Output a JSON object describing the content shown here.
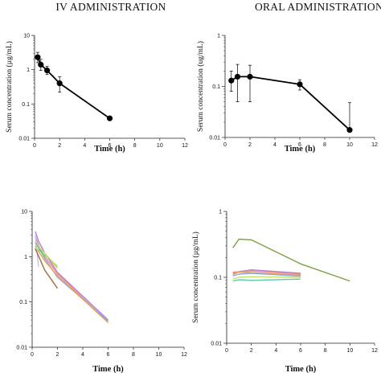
{
  "chart_data": [
    {
      "type": "line",
      "title": "IV ADMINISTRATION",
      "xlabel": "Time (h)",
      "ylabel": "Serum concentration (µg/mL)",
      "xlim": [
        0,
        12
      ],
      "ylim": [
        0.01,
        10
      ],
      "yscale": "log",
      "grid": false,
      "x_ticks": [
        "0",
        "2",
        "4",
        "6",
        "8",
        "10",
        "12"
      ],
      "y_ticks": [
        "10",
        "1",
        "0.1",
        "0.01"
      ],
      "series": [
        {
          "color": "#000000",
          "markers": true,
          "x": [
            0.25,
            0.5,
            1,
            2,
            6
          ],
          "y": [
            2.3,
            1.4,
            0.95,
            0.4,
            0.038
          ],
          "err_low": [
            1.6,
            0.95,
            0.72,
            0.22,
            0.038
          ],
          "err_high": [
            3.2,
            2.0,
            1.25,
            0.62,
            0.038
          ]
        }
      ]
    },
    {
      "type": "line",
      "title": "ORAL ADMINISTRATION",
      "xlabel": "Time (h)",
      "ylabel": "Serum concentration (ug/mL)",
      "xlim": [
        0,
        12
      ],
      "ylim": [
        0.01,
        1
      ],
      "yscale": "log",
      "grid": false,
      "x_ticks": [
        "0",
        "2",
        "4",
        "6",
        "8",
        "10",
        "12"
      ],
      "y_ticks": [
        "1",
        "0.1",
        "0.01"
      ],
      "series": [
        {
          "color": "#000000",
          "markers": true,
          "x": [
            0.5,
            1,
            2,
            6,
            10
          ],
          "y": [
            0.13,
            0.155,
            0.155,
            0.11,
            0.014
          ],
          "err_low": [
            0.08,
            0.05,
            0.05,
            0.085,
            0.014
          ],
          "err_high": [
            0.2,
            0.27,
            0.26,
            0.135,
            0.048
          ]
        }
      ]
    },
    {
      "type": "line",
      "title": "",
      "xlabel": "Time (h)",
      "ylabel": "",
      "xlim": [
        0,
        12
      ],
      "ylim": [
        0.01,
        10
      ],
      "yscale": "log",
      "grid": false,
      "x_ticks": [
        "0",
        "2",
        "4",
        "6",
        "8",
        "10",
        "12"
      ],
      "y_ticks": [
        "10",
        "1",
        "0.1",
        "0.01"
      ],
      "series": [
        {
          "color": "#b07fd6",
          "x": [
            0.25,
            0.5,
            1,
            2,
            6
          ],
          "y": [
            3.6,
            2.2,
            1.2,
            0.45,
            0.04
          ]
        },
        {
          "color": "#ef8f8f",
          "x": [
            0.25,
            0.5,
            1,
            2,
            6
          ],
          "y": [
            2.8,
            1.8,
            1.0,
            0.42,
            0.036
          ]
        },
        {
          "color": "#8fa8e8",
          "x": [
            0.25,
            0.5,
            1,
            2,
            6
          ],
          "y": [
            2.2,
            1.6,
            0.9,
            0.35,
            0.038
          ]
        },
        {
          "color": "#e8a050",
          "x": [
            0.25,
            0.5,
            1,
            2,
            6
          ],
          "y": [
            1.7,
            1.3,
            0.8,
            0.38,
            0.035
          ]
        },
        {
          "color": "#c0e070",
          "x": [
            0.25,
            0.5,
            1,
            2
          ],
          "y": [
            2.0,
            1.7,
            1.2,
            0.55
          ]
        },
        {
          "color": "#b0d050",
          "x": [
            0.25,
            0.5,
            1,
            2
          ],
          "y": [
            1.5,
            1.4,
            1.1,
            0.6
          ]
        },
        {
          "color": "#d8b8f0",
          "x": [
            0.25,
            0.5
          ],
          "y": [
            3.0,
            0.6
          ]
        },
        {
          "color": "#5cc8a0",
          "x": [
            0.25,
            1
          ],
          "y": [
            2.0,
            0.95
          ]
        },
        {
          "color": "#9a7040",
          "x": [
            0.25,
            1,
            2
          ],
          "y": [
            1.5,
            0.5,
            0.2
          ]
        }
      ]
    },
    {
      "type": "line",
      "title": "",
      "xlabel": "Time (h)",
      "ylabel": "Serum concentration (µg/mL)",
      "xlim": [
        0,
        12
      ],
      "ylim": [
        0.01,
        1
      ],
      "yscale": "log",
      "grid": false,
      "x_ticks": [
        "0",
        "2",
        "4",
        "6",
        "8",
        "10",
        "12"
      ],
      "y_ticks": [
        "1",
        "0.1",
        "0.01"
      ],
      "series": [
        {
          "color": "#7aa040",
          "x": [
            0.5,
            1,
            2,
            6,
            10
          ],
          "y": [
            0.28,
            0.38,
            0.37,
            0.16,
            0.088
          ]
        },
        {
          "color": "#b07fd6",
          "x": [
            0.5,
            1,
            2,
            6
          ],
          "y": [
            0.115,
            0.122,
            0.13,
            0.115
          ]
        },
        {
          "color": "#ef8f8f",
          "x": [
            0.5,
            1,
            2,
            6
          ],
          "y": [
            0.12,
            0.12,
            0.125,
            0.112
          ]
        },
        {
          "color": "#e8a050",
          "x": [
            0.5,
            1,
            2,
            6
          ],
          "y": [
            0.11,
            0.12,
            0.118,
            0.108
          ]
        },
        {
          "color": "#8fa8e8",
          "x": [
            0.5,
            1,
            2,
            6
          ],
          "y": [
            0.105,
            0.112,
            0.115,
            0.104
          ]
        },
        {
          "color": "#c0e070",
          "x": [
            0.5,
            1,
            2,
            6
          ],
          "y": [
            0.095,
            0.1,
            0.102,
            0.1
          ]
        },
        {
          "color": "#5cc8a0",
          "x": [
            0.5,
            1,
            2,
            6
          ],
          "y": [
            0.088,
            0.092,
            0.09,
            0.094
          ]
        }
      ]
    }
  ]
}
